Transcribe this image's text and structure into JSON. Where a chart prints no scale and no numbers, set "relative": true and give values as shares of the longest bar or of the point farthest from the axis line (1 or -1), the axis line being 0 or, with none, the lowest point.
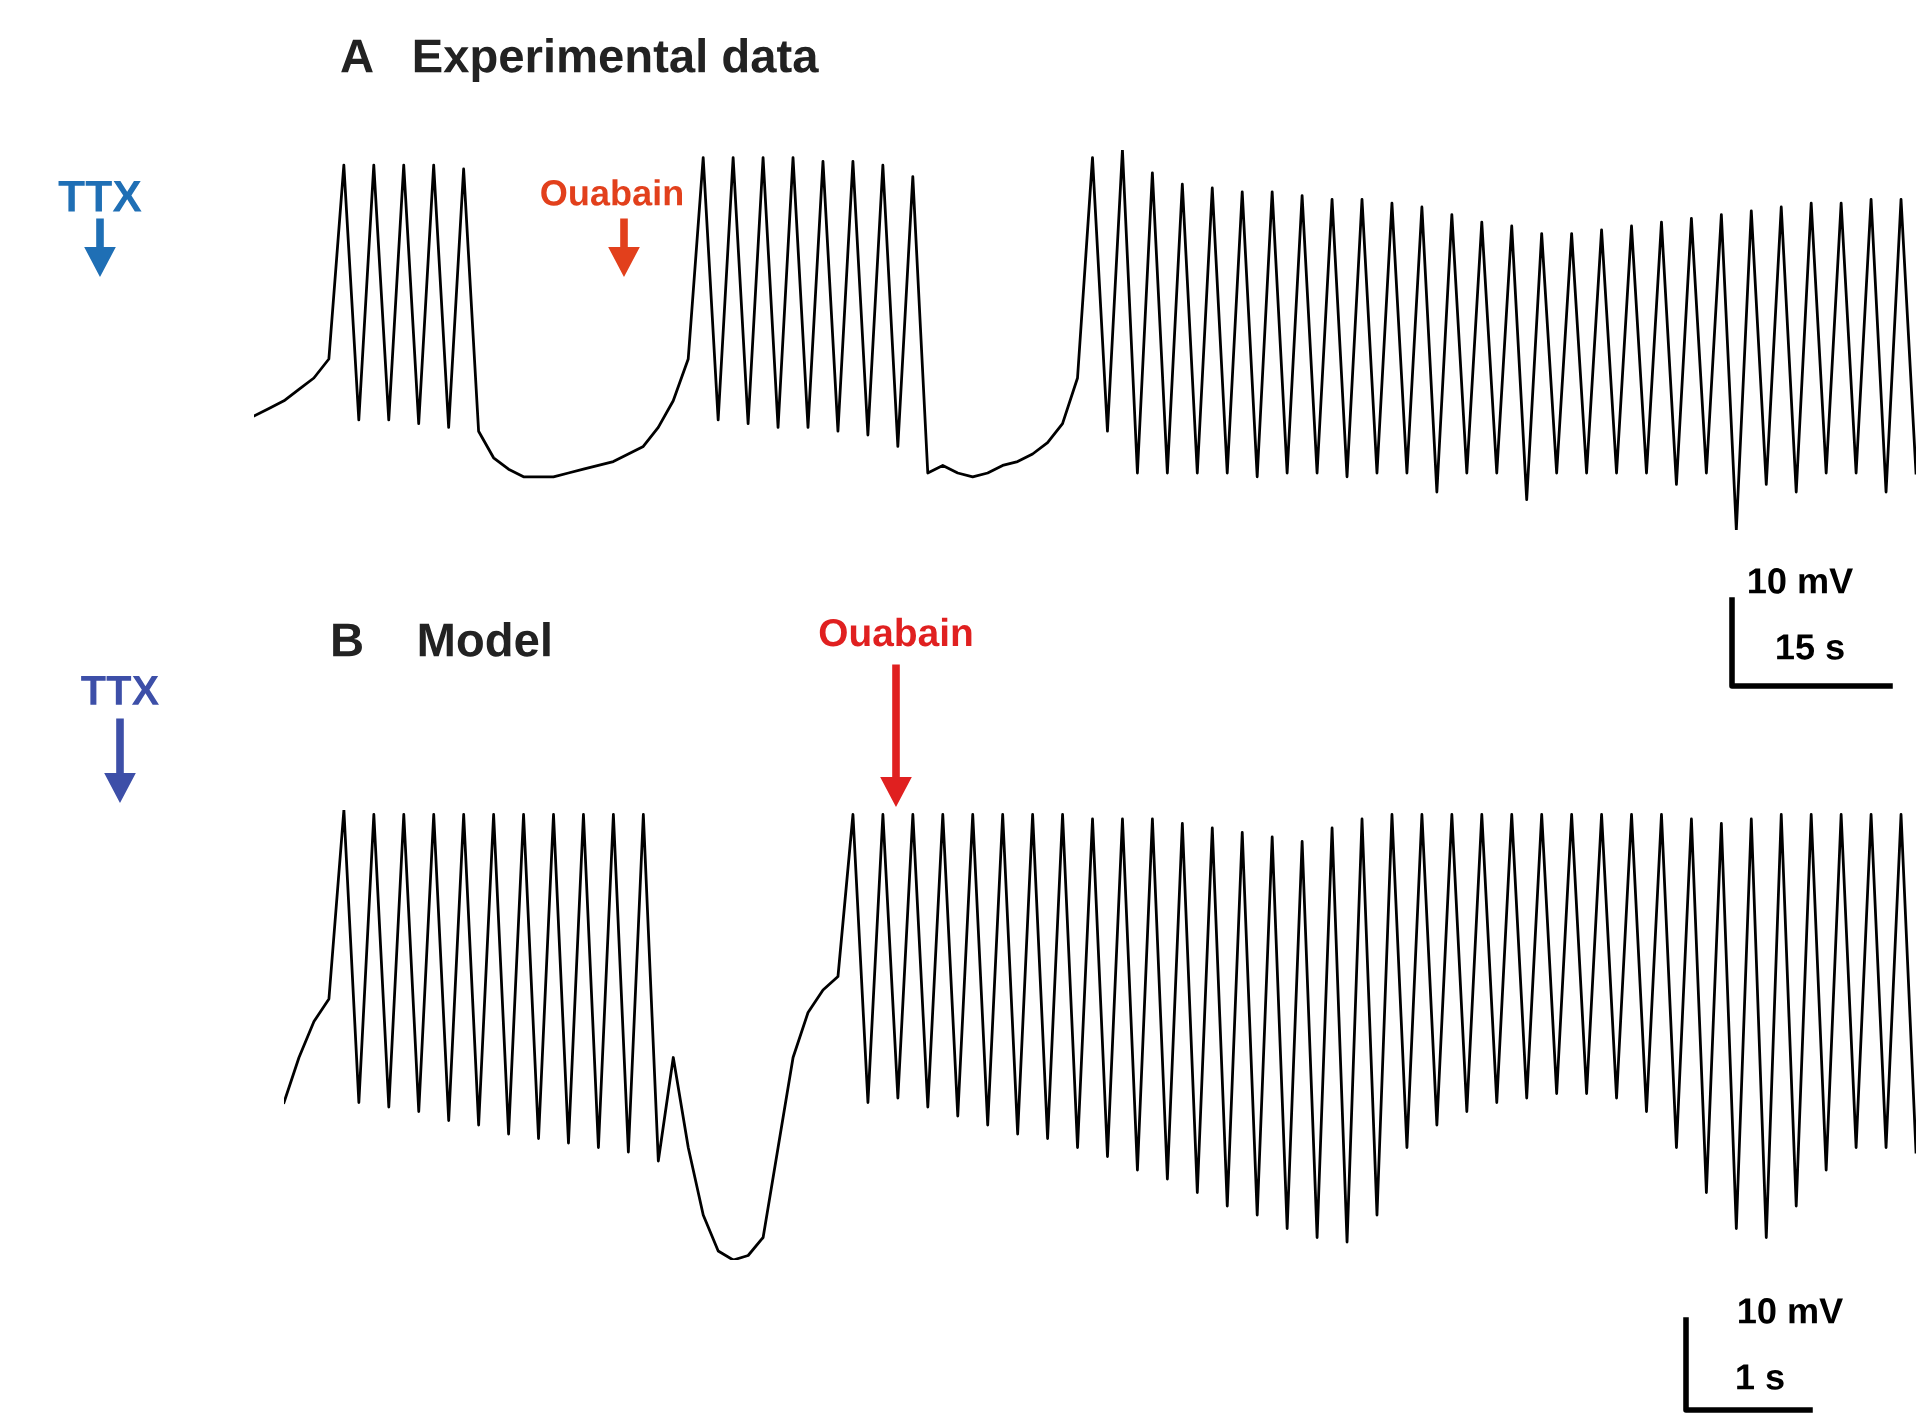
{
  "chart_data": [
    {
      "type": "line",
      "title": "A   Experimental data",
      "relative": true,
      "categories": [
        null,
        null,
        null,
        null,
        null,
        null,
        null,
        null,
        null,
        null,
        null,
        null,
        null,
        null,
        null,
        null,
        null,
        null,
        null,
        null,
        null,
        null,
        null,
        null,
        null,
        null,
        null,
        null,
        null,
        null,
        null,
        null,
        null,
        null,
        null,
        null,
        null,
        null,
        null,
        null,
        null,
        null,
        null,
        null,
        null,
        null,
        null,
        null,
        null,
        null,
        null,
        null,
        null,
        null,
        null,
        null,
        null,
        null,
        null,
        null,
        null,
        null,
        null,
        null,
        null,
        null,
        null,
        null,
        null,
        null,
        null,
        null,
        null,
        null,
        null,
        null,
        null,
        null,
        null,
        null,
        null,
        null,
        null,
        null,
        null,
        null,
        null,
        null,
        null,
        null,
        null,
        null,
        null,
        null,
        null,
        null,
        null,
        null,
        null,
        null,
        null,
        null,
        null,
        null,
        null,
        null,
        null,
        null,
        null,
        null,
        null,
        null
      ],
      "series": [
        {
          "color": "#000000",
          "values": [
            0.3,
            0.32,
            0.34,
            0.37,
            0.4,
            0.45,
            0.96,
            0.29,
            0.96,
            0.29,
            0.96,
            0.28,
            0.96,
            0.27,
            0.95,
            0.26,
            0.19,
            0.16,
            0.14,
            0.14,
            0.14,
            0.15,
            0.16,
            0.17,
            0.18,
            0.2,
            0.22,
            0.27,
            0.34,
            0.45,
            0.98,
            0.29,
            0.98,
            0.28,
            0.98,
            0.27,
            0.98,
            0.27,
            0.97,
            0.26,
            0.97,
            0.25,
            0.96,
            0.22,
            0.93,
            0.15,
            0.17,
            0.15,
            0.14,
            0.15,
            0.17,
            0.18,
            0.2,
            0.23,
            0.28,
            0.4,
            0.98,
            0.26,
            1.0,
            0.15,
            0.94,
            0.15,
            0.91,
            0.15,
            0.9,
            0.15,
            0.89,
            0.14,
            0.89,
            0.15,
            0.88,
            0.15,
            0.87,
            0.14,
            0.87,
            0.15,
            0.86,
            0.15,
            0.85,
            0.1,
            0.83,
            0.15,
            0.81,
            0.15,
            0.8,
            0.08,
            0.78,
            0.15,
            0.78,
            0.15,
            0.79,
            0.15,
            0.8,
            0.15,
            0.81,
            0.12,
            0.82,
            0.15,
            0.83,
            0.0,
            0.84,
            0.12,
            0.85,
            0.1,
            0.86,
            0.15,
            0.86,
            0.15,
            0.87,
            0.1,
            0.87,
            0.15
          ]
        }
      ],
      "annotations": [
        "TTX",
        "Ouabain",
        "10 mV",
        "15 s"
      ]
    },
    {
      "type": "line",
      "title": "B    Model",
      "relative": true,
      "categories": [
        null,
        null,
        null,
        null,
        null,
        null,
        null,
        null,
        null,
        null,
        null,
        null,
        null,
        null,
        null,
        null,
        null,
        null,
        null,
        null,
        null,
        null,
        null,
        null,
        null,
        null,
        null,
        null,
        null,
        null,
        null,
        null,
        null,
        null,
        null,
        null,
        null,
        null,
        null,
        null,
        null,
        null,
        null,
        null,
        null,
        null,
        null,
        null,
        null,
        null,
        null,
        null,
        null,
        null,
        null,
        null,
        null,
        null,
        null,
        null,
        null,
        null,
        null,
        null,
        null,
        null,
        null,
        null,
        null,
        null,
        null,
        null,
        null,
        null,
        null,
        null,
        null,
        null,
        null,
        null,
        null,
        null,
        null,
        null,
        null,
        null,
        null,
        null,
        null,
        null,
        null,
        null,
        null,
        null,
        null,
        null,
        null,
        null,
        null,
        null,
        null,
        null,
        null,
        null,
        null,
        null,
        null,
        null,
        null,
        null
      ],
      "series": [
        {
          "color": "#000000",
          "values": [
            0.35,
            0.45,
            0.53,
            0.58,
            1.0,
            0.35,
            0.99,
            0.34,
            0.99,
            0.33,
            0.99,
            0.31,
            0.99,
            0.3,
            0.99,
            0.28,
            0.99,
            0.27,
            0.99,
            0.26,
            0.99,
            0.25,
            0.99,
            0.24,
            0.99,
            0.22,
            0.45,
            0.25,
            0.1,
            0.02,
            0.0,
            0.01,
            0.05,
            0.25,
            0.45,
            0.55,
            0.6,
            0.63,
            0.99,
            0.35,
            0.99,
            0.36,
            0.99,
            0.34,
            0.99,
            0.32,
            0.99,
            0.3,
            0.99,
            0.28,
            0.99,
            0.27,
            0.99,
            0.25,
            0.98,
            0.23,
            0.98,
            0.2,
            0.98,
            0.18,
            0.97,
            0.15,
            0.96,
            0.12,
            0.95,
            0.1,
            0.94,
            0.07,
            0.93,
            0.05,
            0.96,
            0.04,
            0.98,
            0.1,
            0.99,
            0.25,
            0.99,
            0.3,
            0.99,
            0.33,
            0.99,
            0.35,
            0.99,
            0.36,
            0.99,
            0.37,
            0.99,
            0.37,
            0.99,
            0.36,
            0.99,
            0.33,
            0.99,
            0.25,
            0.98,
            0.15,
            0.97,
            0.07,
            0.98,
            0.05,
            0.99,
            0.12,
            0.99,
            0.2,
            0.99,
            0.25,
            0.99,
            0.25,
            0.99,
            0.24
          ]
        }
      ],
      "annotations": [
        "TTX",
        "Ouabain",
        "10 mV",
        "1 s"
      ]
    }
  ]
}
